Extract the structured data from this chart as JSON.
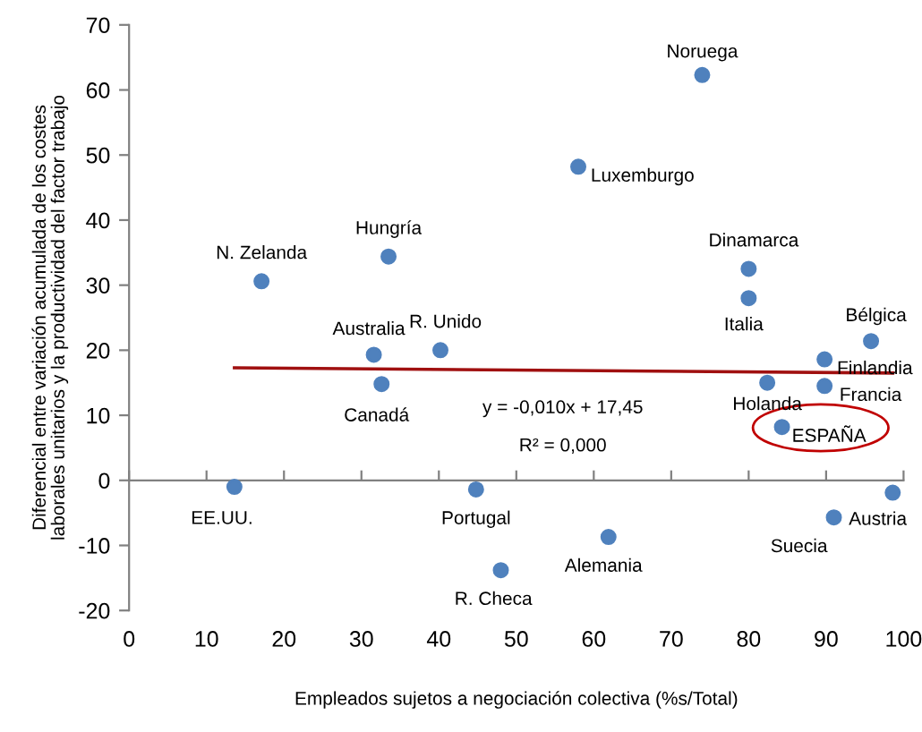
{
  "chart_data": {
    "type": "scatter",
    "xlabel": "Empleados sujetos a negociación colectiva (%s/Total)",
    "ylabel": "Diferencial entre variación acumulada de los costes\nlaborales unitarios y la productividad del factor trabajo",
    "xlim": [
      0,
      100
    ],
    "ylim": [
      -20,
      70
    ],
    "xticks": [
      0,
      10,
      20,
      30,
      40,
      50,
      60,
      70,
      80,
      90,
      100
    ],
    "yticks": [
      -20,
      -10,
      0,
      10,
      20,
      30,
      40,
      50,
      60,
      70
    ],
    "legend": false,
    "series": [
      {
        "marker": "circle",
        "color": "#4f81bd",
        "x": [
          74,
          58,
          17.1,
          33.5,
          80,
          80,
          31.6,
          40.2,
          95.8,
          89.8,
          32.6,
          82.4,
          89.8,
          84.3,
          13.6,
          44.8,
          98.6,
          91,
          61.9,
          48
        ],
        "values": [
          62.3,
          48.2,
          30.6,
          34.4,
          32.5,
          28,
          19.3,
          20,
          21.4,
          18.6,
          14.8,
          15,
          14.5,
          8.2,
          -1,
          -1.4,
          -1.9,
          -5.7,
          -8.7,
          -13.8
        ]
      },
      {
        "type": "line",
        "color": "#a01010",
        "x": [
          13.6,
          98.6
        ],
        "values": [
          17.3,
          16.5
        ]
      }
    ],
    "annotations": [
      {
        "text": "Noruega",
        "x": 74,
        "y": 62.3
      },
      {
        "text": "Luxemburgo",
        "x": 58,
        "y": 48.2
      },
      {
        "text": "N. Zelanda",
        "x": 17.1,
        "y": 30.6
      },
      {
        "text": "Hungría",
        "x": 33.5,
        "y": 34.4
      },
      {
        "text": "Dinamarca",
        "x": 80,
        "y": 32.5
      },
      {
        "text": "Italia",
        "x": 80,
        "y": 28
      },
      {
        "text": "Australia",
        "x": 31.6,
        "y": 19.3
      },
      {
        "text": "R. Unido",
        "x": 40.2,
        "y": 20
      },
      {
        "text": "Bélgica",
        "x": 95.8,
        "y": 21.4
      },
      {
        "text": "Finlandia",
        "x": 89.8,
        "y": 18.6
      },
      {
        "text": "Canadá",
        "x": 32.6,
        "y": 14.8
      },
      {
        "text": "Holanda",
        "x": 82.4,
        "y": 15
      },
      {
        "text": "Francia",
        "x": 89.8,
        "y": 14.5
      },
      {
        "text": "ESPAÑA",
        "x": 84.3,
        "y": 8.2
      },
      {
        "text": "EE.UU.",
        "x": 13.6,
        "y": -1
      },
      {
        "text": "Portugal",
        "x": 44.8,
        "y": -1.4
      },
      {
        "text": "Austria",
        "x": 98.6,
        "y": -1.9
      },
      {
        "text": "Suecia",
        "x": 91,
        "y": -5.7
      },
      {
        "text": "Alemania",
        "x": 61.9,
        "y": -8.7
      },
      {
        "text": "R. Checa",
        "x": 48,
        "y": -13.8
      },
      "y = -0,010x + 17,45",
      "R² = 0,000"
    ]
  }
}
